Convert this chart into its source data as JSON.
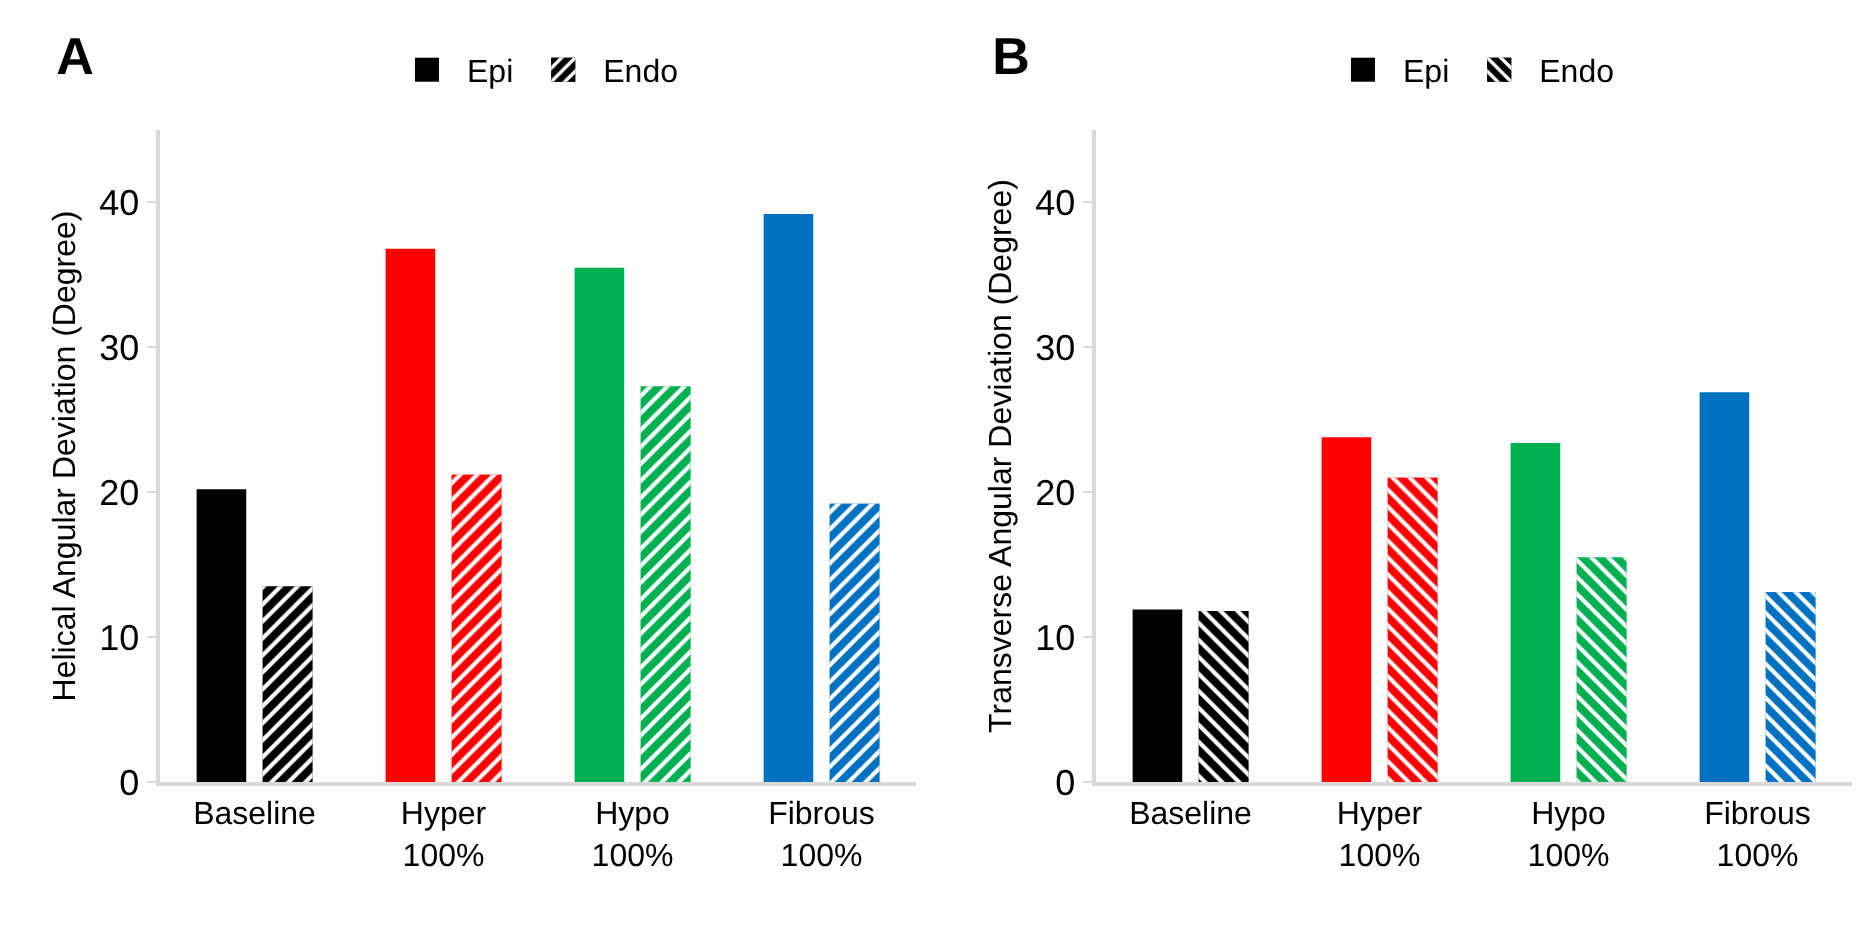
{
  "chart_data": [
    {
      "type": "bar",
      "title": "A",
      "ylabel": "Helical Angular Deviation (Degree)",
      "categories": [
        "Baseline",
        "Hyper\n100%",
        "Hypo\n100%",
        "Fibrous\n100%"
      ],
      "series": [
        {
          "name": "Epi",
          "colors": [
            "#000000",
            "#ff0000",
            "#00b050",
            "#0070c0"
          ],
          "values": [
            20.2,
            36.8,
            35.5,
            39.2
          ]
        },
        {
          "name": "Endo",
          "colors": [
            "#000000",
            "#ff0000",
            "#00b050",
            "#0070c0"
          ],
          "values": [
            13.5,
            21.2,
            27.3,
            19.2
          ]
        }
      ],
      "ylim": [
        0,
        45
      ],
      "yticks": [
        0,
        10,
        20,
        30,
        40
      ],
      "grid": false,
      "legend": "top"
    },
    {
      "type": "bar",
      "title": "B",
      "ylabel": "Transverse Angular Deviation (Degree)",
      "categories": [
        "Baseline",
        "Hyper\n100%",
        "Hypo\n100%",
        "Fibrous\n100%"
      ],
      "series": [
        {
          "name": "Epi",
          "colors": [
            "#000000",
            "#ff0000",
            "#00b050",
            "#0070c0"
          ],
          "values": [
            11.9,
            23.8,
            23.4,
            26.9
          ]
        },
        {
          "name": "Endo",
          "colors": [
            "#000000",
            "#ff0000",
            "#00b050",
            "#0070c0"
          ],
          "values": [
            11.8,
            21.0,
            15.5,
            13.1
          ]
        }
      ],
      "ylim": [
        0,
        45
      ],
      "yticks": [
        0,
        10,
        20,
        30,
        40
      ],
      "grid": false,
      "legend": "top"
    }
  ]
}
